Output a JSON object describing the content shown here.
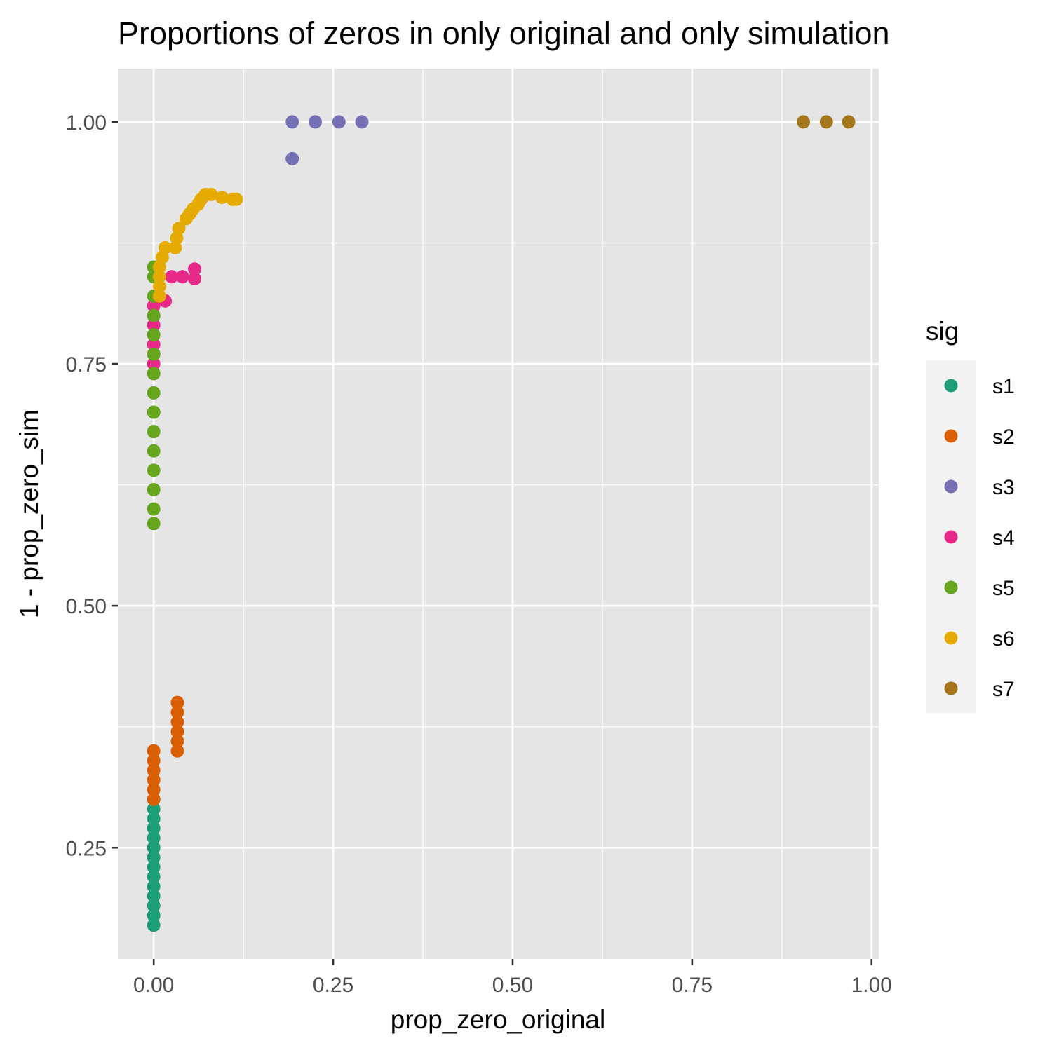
{
  "chart_data": {
    "type": "scatter",
    "title": "Proportions of zeros in only original and only simulation",
    "xlabel": "prop_zero_original",
    "ylabel": "1 - prop_zero_sim",
    "xlim": [
      -0.05,
      1.01
    ],
    "ylim": [
      0.135,
      1.055
    ],
    "xticks": [
      0.0,
      0.25,
      0.5,
      0.75,
      1.0
    ],
    "xtick_labels": [
      "0.00",
      "0.25",
      "0.50",
      "0.75",
      "1.00"
    ],
    "yticks": [
      0.25,
      0.5,
      0.75,
      1.0
    ],
    "ytick_labels": [
      "0.25",
      "0.50",
      "0.75",
      "1.00"
    ],
    "grid": true,
    "legend": {
      "title": "sig",
      "position": "right"
    },
    "series": [
      {
        "name": "s1",
        "color": "#1b9e77",
        "points": [
          [
            0,
            0.17
          ],
          [
            0,
            0.18
          ],
          [
            0,
            0.19
          ],
          [
            0,
            0.2
          ],
          [
            0,
            0.21
          ],
          [
            0,
            0.22
          ],
          [
            0,
            0.23
          ],
          [
            0,
            0.24
          ],
          [
            0,
            0.25
          ],
          [
            0,
            0.26
          ],
          [
            0,
            0.27
          ],
          [
            0,
            0.28
          ],
          [
            0,
            0.29
          ]
        ]
      },
      {
        "name": "s2",
        "color": "#d95f02",
        "points": [
          [
            0,
            0.3
          ],
          [
            0,
            0.31
          ],
          [
            0,
            0.32
          ],
          [
            0,
            0.33
          ],
          [
            0,
            0.34
          ],
          [
            0,
            0.35
          ],
          [
            0.033,
            0.35
          ],
          [
            0.033,
            0.36
          ],
          [
            0.033,
            0.37
          ],
          [
            0.033,
            0.38
          ],
          [
            0.033,
            0.39
          ],
          [
            0.033,
            0.4
          ]
        ]
      },
      {
        "name": "s3",
        "color": "#7570b3",
        "points": [
          [
            0.193,
            0.962
          ],
          [
            0.193,
            1.0
          ],
          [
            0.225,
            1.0
          ],
          [
            0.258,
            1.0
          ],
          [
            0.29,
            1.0
          ]
        ]
      },
      {
        "name": "s4",
        "color": "#e7298a",
        "points": [
          [
            0,
            0.74
          ],
          [
            0,
            0.75
          ],
          [
            0,
            0.76
          ],
          [
            0,
            0.77
          ],
          [
            0,
            0.78
          ],
          [
            0,
            0.79
          ],
          [
            0,
            0.8
          ],
          [
            0,
            0.81
          ],
          [
            0.016,
            0.815
          ],
          [
            0.025,
            0.84
          ],
          [
            0.04,
            0.84
          ],
          [
            0.057,
            0.838
          ],
          [
            0.057,
            0.848
          ]
        ]
      },
      {
        "name": "s5",
        "color": "#66a61e",
        "points": [
          [
            0,
            0.585
          ],
          [
            0,
            0.6
          ],
          [
            0,
            0.62
          ],
          [
            0,
            0.64
          ],
          [
            0,
            0.66
          ],
          [
            0,
            0.68
          ],
          [
            0,
            0.7
          ],
          [
            0,
            0.72
          ],
          [
            0,
            0.74
          ],
          [
            0,
            0.76
          ],
          [
            0,
            0.78
          ],
          [
            0,
            0.8
          ],
          [
            0,
            0.82
          ],
          [
            0,
            0.84
          ],
          [
            0,
            0.85
          ]
        ]
      },
      {
        "name": "s6",
        "color": "#e6ab02",
        "points": [
          [
            0.008,
            0.82
          ],
          [
            0.008,
            0.83
          ],
          [
            0.008,
            0.84
          ],
          [
            0.008,
            0.85
          ],
          [
            0.012,
            0.86
          ],
          [
            0.016,
            0.87
          ],
          [
            0.03,
            0.87
          ],
          [
            0.032,
            0.88
          ],
          [
            0.035,
            0.89
          ],
          [
            0.045,
            0.9
          ],
          [
            0.05,
            0.905
          ],
          [
            0.055,
            0.91
          ],
          [
            0.062,
            0.915
          ],
          [
            0.066,
            0.92
          ],
          [
            0.072,
            0.925
          ],
          [
            0.08,
            0.925
          ],
          [
            0.095,
            0.922
          ],
          [
            0.11,
            0.92
          ],
          [
            0.115,
            0.92
          ]
        ]
      },
      {
        "name": "s7",
        "color": "#a6761d",
        "points": [
          [
            0.905,
            1.0
          ],
          [
            0.937,
            1.0
          ],
          [
            0.968,
            1.0
          ]
        ]
      }
    ]
  }
}
